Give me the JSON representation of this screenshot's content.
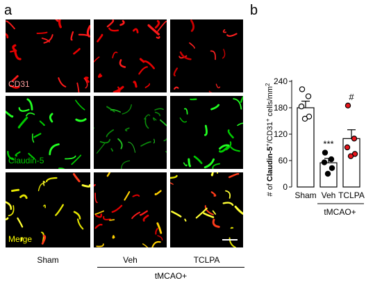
{
  "panel_a": {
    "letter": "a",
    "row_labels": [
      {
        "text": "CD31",
        "color": "#ffa0a0"
      },
      {
        "text": "Claudin-5",
        "color": "#00cc00"
      },
      {
        "text": "Merge",
        "color": "#ffff00"
      }
    ],
    "columns": [
      "Sham",
      "Veh",
      "TCLPA"
    ],
    "group_label": "tMCAO+"
  },
  "panel_b": {
    "letter": "b"
  },
  "chart_data": {
    "type": "bar",
    "categories": [
      "Sham",
      "Veh",
      "TCLPA"
    ],
    "values": [
      180,
      55,
      110
    ],
    "errors": [
      15,
      10,
      20
    ],
    "ylabel_parts": [
      "# of ",
      "Claudin-5",
      "+",
      "/CD31",
      "+",
      " cells/mm",
      "2"
    ],
    "yticks": [
      "0",
      "60",
      "120",
      "180",
      "240"
    ],
    "ylim": [
      0,
      240
    ],
    "group_label": "tMCAO+",
    "significance": [
      "",
      "***",
      "#"
    ],
    "points": [
      [
        222,
        206,
        183,
        160,
        155
      ],
      [
        78,
        63,
        56,
        43,
        30
      ],
      [
        185,
        110,
        90,
        75,
        70
      ]
    ],
    "point_colors": {
      "Sham": "#ffffff",
      "Veh": "#000000",
      "TCLPA": "#e8141b"
    },
    "point_stroke": "#000000"
  }
}
